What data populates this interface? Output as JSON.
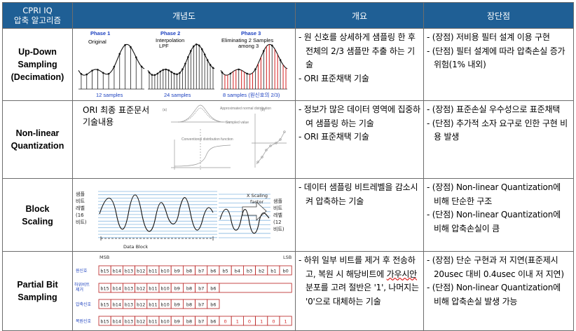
{
  "header": {
    "col1": [
      "CPRI IQ",
      "압축 알고리즘"
    ],
    "col2": "개념도",
    "col3": "개요",
    "col4": "장단점"
  },
  "rows": [
    {
      "name": [
        "Up-Down",
        "Sampling",
        "(Decimation)"
      ],
      "diagram": {
        "phases": [
          "Phase 1",
          "Phase 2",
          "Phase 3"
        ],
        "phase_captions": [
          "Original",
          "Interpolation",
          "LPF",
          "Eliminating 2 Samples",
          "among 3"
        ],
        "sample_labels": [
          "12 samples",
          "24 samples",
          "8 samples (원신호의 2/3)"
        ]
      },
      "overview": [
        "- 원 신호를 상세하게 샘플링 한 후 전체의 2/3 샘플만 추출 하는 기술",
        "- ORI 표준채택 기술"
      ],
      "pros_cons": [
        "- (장점) 저비용 필터 설계 이용 구현",
        "- (단점) 필터 설계에 따라 압축손실 증가 위험(1% 내외)"
      ]
    },
    {
      "name": [
        "Non-linear",
        "Quantization"
      ],
      "diagram": {
        "note": [
          "ORI 최종 표준문서",
          "기술내용"
        ],
        "tiny_labels": [
          "(a)",
          "(b)",
          "Sampled value",
          "Approximated normal distribution",
          "Conventional distribution function"
        ]
      },
      "overview": [
        "- 정보가 많은 데이터 영역에 집중하여 샘플링 하는 기술",
        "- ORI 표준채택 기술"
      ],
      "pros_cons": [
        "- (장점) 표준손실 우수성으로 표준채택",
        "- (단점) 추가적 소자 요구로 인한 구현 비용 발생"
      ]
    },
    {
      "name": [
        "Block",
        "Scaling"
      ],
      "diagram": {
        "left_label": [
          "샘플",
          "비트",
          "레벨",
          "(16",
          "비트)"
        ],
        "right_label": [
          "샘플",
          "비트",
          "레벨",
          "(12",
          "비트)"
        ],
        "arrow_label": [
          "X Scaling",
          "factor"
        ],
        "block_label": "Data Block"
      },
      "overview": [
        "- 데이터 샘플링 비트레벨을 감소시켜 압축하는 기술"
      ],
      "pros_cons": [
        "- (장점) Non-linear Quantization에 비해 단순한 구조",
        "- (단점) Non-linear Quantization에 비해 압축손실이 큼"
      ]
    },
    {
      "name": [
        "Partial Bit",
        "Sampling"
      ],
      "diagram": {
        "msb": "MSB",
        "lsb": "LSB",
        "row_labels": [
          "원신호",
          "하위비트 제거",
          "압축신호",
          "복원신호"
        ],
        "bits": [
          "b15",
          "b14",
          "b13",
          "b12",
          "b11",
          "b10",
          "b9",
          "b8",
          "b7",
          "b6",
          "b5",
          "b4",
          "b3",
          "b2",
          "b1",
          "b0"
        ],
        "restored_tail": [
          "0",
          "1",
          "0",
          "1",
          "0",
          "1"
        ]
      },
      "overview_parts": [
        "- 하위 일부 비트를 제거 후 전송하고, 복원 시 해당비트에 ",
        "가우시안",
        " 분포를 고려 절반은 '1', 나머지는 '0'으로 대체하는 기술"
      ],
      "pros_cons": [
        "- (장점) 단순 구현과 저 지연(표준제시 20usec 대비 0.4usec 이내 저 지연)",
        "- (단점) Non-linear Quantization에 비해 압축손실 발생 가능"
      ]
    }
  ],
  "colors": {
    "header_bg": "#1f5f95",
    "phase_label": "#1a3fbf",
    "red_mark": "#d21f1f",
    "bit_box": "#b71c1c"
  }
}
